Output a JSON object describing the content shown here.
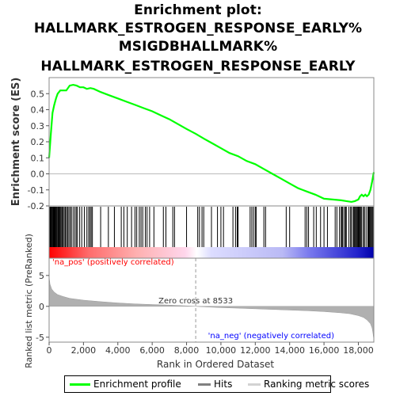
{
  "title_lines": [
    "Enrichment plot:",
    "HALLMARK_ESTROGEN_RESPONSE_EARLY%",
    "MSIGDBHALLMARK%",
    "HALLMARK_ESTROGEN_RESPONSE_EARLY"
  ],
  "legend": {
    "items": [
      {
        "label": "Enrichment profile",
        "color": "#00ff00"
      },
      {
        "label": "Hits",
        "color": "#808080"
      },
      {
        "label": "Ranking metric scores",
        "color": "#d3d3d3"
      }
    ]
  },
  "chart_data": {
    "type": "line",
    "n_genes": 18900,
    "xlabel": "Rank in Ordered Dataset",
    "x_ticks": [
      0,
      2000,
      4000,
      6000,
      8000,
      10000,
      12000,
      14000,
      16000,
      18000
    ],
    "x_tick_labels": [
      "0",
      "2,000",
      "4,000",
      "6,000",
      "8,000",
      "10,000",
      "12,000",
      "14,000",
      "16,000",
      "18,000"
    ],
    "enrichment": {
      "ylabel": "Enrichment score (ES)",
      "ylim": [
        -0.2,
        0.6
      ],
      "y_ticks": [
        -0.2,
        -0.1,
        0.0,
        0.1,
        0.2,
        0.3,
        0.4,
        0.5
      ],
      "y_tick_labels": [
        "-0.2",
        "-0.1",
        "0.0",
        "0.1",
        "0.2",
        "0.3",
        "0.4",
        "0.5"
      ],
      "profile_color": "#00ff00",
      "x": [
        0,
        100,
        200,
        300,
        400,
        500,
        650,
        800,
        1000,
        1200,
        1400,
        1600,
        1800,
        2000,
        2200,
        2400,
        2600,
        3000,
        3500,
        4000,
        4500,
        5000,
        5500,
        6000,
        6500,
        7000,
        7500,
        8000,
        8533,
        9000,
        9500,
        10000,
        10500,
        11000,
        11500,
        12000,
        12500,
        13000,
        13500,
        14000,
        14500,
        15000,
        15500,
        16000,
        16500,
        17000,
        17300,
        17600,
        17800,
        18000,
        18100,
        18200,
        18300,
        18400,
        18500,
        18600,
        18700,
        18800,
        18900
      ],
      "values": [
        0.1,
        0.25,
        0.38,
        0.43,
        0.47,
        0.5,
        0.52,
        0.52,
        0.52,
        0.55,
        0.555,
        0.55,
        0.54,
        0.54,
        0.53,
        0.535,
        0.53,
        0.51,
        0.49,
        0.47,
        0.45,
        0.43,
        0.41,
        0.39,
        0.365,
        0.34,
        0.31,
        0.28,
        0.25,
        0.22,
        0.19,
        0.16,
        0.13,
        0.11,
        0.08,
        0.06,
        0.03,
        0.0,
        -0.03,
        -0.06,
        -0.09,
        -0.11,
        -0.13,
        -0.155,
        -0.16,
        -0.165,
        -0.17,
        -0.175,
        -0.17,
        -0.16,
        -0.14,
        -0.13,
        -0.14,
        -0.13,
        -0.14,
        -0.13,
        -0.1,
        -0.05,
        0.01
      ]
    },
    "hits": [
      50,
      90,
      130,
      170,
      200,
      240,
      270,
      300,
      330,
      360,
      400,
      430,
      470,
      520,
      560,
      600,
      650,
      700,
      760,
      820,
      880,
      950,
      1010,
      1080,
      1150,
      1230,
      1300,
      1400,
      1500,
      1580,
      1650,
      1780,
      1900,
      2050,
      2200,
      2300,
      2380,
      2450,
      2520,
      3000,
      3450,
      3800,
      4200,
      4350,
      4550,
      4800,
      5000,
      5100,
      5250,
      5350,
      5450,
      5600,
      5700,
      5850,
      6100,
      6650,
      6800,
      7200,
      7300,
      8000,
      8650,
      8750,
      8900,
      9000,
      9450,
      9800,
      10000,
      10150,
      10700,
      10850,
      10950,
      11000,
      11700,
      11800,
      11900,
      12000,
      12050,
      12500,
      12600,
      13800,
      14000,
      14900,
      15000,
      15100,
      15400,
      15550,
      15800,
      16000,
      16200,
      16650,
      16750,
      16900,
      17000,
      17050,
      17100,
      17200,
      17250,
      17300,
      17450,
      17550,
      17600,
      17700,
      17750,
      17800,
      17850,
      17900,
      17950,
      18000,
      18050,
      18100,
      18150,
      18200,
      18300,
      18350,
      18450,
      18550,
      18600,
      18650,
      18700,
      18750,
      18800,
      18850
    ],
    "ranking": {
      "ylabel": "Ranked list metric (PreRanked)",
      "ylim": [
        -5.8,
        7.8
      ],
      "y_ticks": [
        -5,
        0,
        5
      ],
      "y_tick_labels": [
        "-5",
        "0",
        "5"
      ],
      "x": [
        0,
        50,
        150,
        300,
        500,
        800,
        1200,
        2000,
        3000,
        4000,
        5000,
        6000,
        7000,
        8000,
        8533,
        9000,
        10000,
        11000,
        12000,
        13000,
        14000,
        15000,
        16000,
        17000,
        17500,
        18000,
        18300,
        18500,
        18700,
        18800,
        18850,
        18900
      ],
      "values": [
        4.8,
        3.6,
        2.8,
        2.3,
        1.9,
        1.6,
        1.3,
        1.0,
        0.75,
        0.55,
        0.4,
        0.3,
        0.2,
        0.07,
        0.0,
        -0.08,
        -0.2,
        -0.3,
        -0.4,
        -0.5,
        -0.6,
        -0.7,
        -0.85,
        -1.05,
        -1.2,
        -1.5,
        -1.8,
        -2.2,
        -2.8,
        -3.5,
        -4.3,
        -5.4
      ],
      "fill_color": "#b0b0b0",
      "zero_cross": 8533,
      "zero_cross_label": "Zero cross at 8533",
      "pos_label": "'na_pos' (positively correlated)",
      "neg_label": "'na_neg' (negatively correlated)",
      "pos_color": "#ff0000",
      "neg_color": "#0000ff"
    }
  }
}
